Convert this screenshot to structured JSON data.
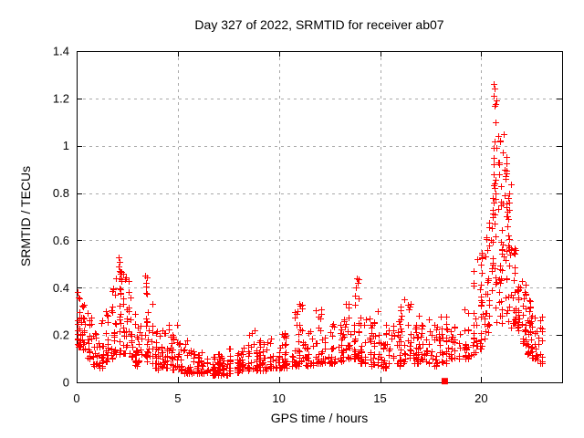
{
  "header": {
    "title": "Day 327 of 2022, SRMTID for receiver ab07"
  },
  "chart_data": {
    "type": "scatter",
    "title": "Day 327 of 2022, SRMTID for receiver ab07",
    "xlabel": "GPS time / hours",
    "ylabel": "SRMTID / TECUs",
    "xlim": [
      0,
      24
    ],
    "ylim": [
      0,
      1.4
    ],
    "xticks": [
      0,
      5,
      10,
      15,
      20
    ],
    "xtick_labels": [
      "0",
      "5",
      "10",
      "15",
      "20"
    ],
    "yticks": [
      0,
      0.2,
      0.4,
      0.6,
      0.8,
      1,
      1.2,
      1.4
    ],
    "ytick_labels": [
      "0",
      "0.2",
      "0.4",
      "0.6",
      "0.8",
      "1",
      "1.2",
      "1.4"
    ],
    "grid": true,
    "legend": "none",
    "marker": "plus-cross",
    "marker_color": "#ff0000",
    "grid_color": "#a9a9a9",
    "border_color": "#000000",
    "background": "#ffffff",
    "data_x_max_hours": 23.1,
    "y_max_observed": 1.26,
    "description": "Dense scatter of 1-per-sample SRMTID values: band ~0.05-0.2 all day, spikes near 2h (0.53), 3.4h (0.45), 13.9h (0.44), large peak 20.5-21.4h up to 1.26, decaying to ~0.1-0.3 by 23h",
    "envelope_bins": [
      [
        0.0,
        0.25,
        0.15,
        0.38,
        22
      ],
      [
        0.25,
        0.5,
        0.14,
        0.33,
        18
      ],
      [
        0.5,
        0.75,
        0.1,
        0.3,
        16
      ],
      [
        0.75,
        1.0,
        0.07,
        0.22,
        14
      ],
      [
        1.0,
        1.25,
        0.06,
        0.2,
        14
      ],
      [
        1.25,
        1.5,
        0.09,
        0.3,
        16
      ],
      [
        1.5,
        1.75,
        0.1,
        0.33,
        16
      ],
      [
        1.75,
        2.0,
        0.12,
        0.44,
        18
      ],
      [
        2.0,
        2.25,
        0.12,
        0.53,
        22
      ],
      [
        2.25,
        2.5,
        0.12,
        0.47,
        18
      ],
      [
        2.5,
        2.75,
        0.1,
        0.42,
        16
      ],
      [
        2.75,
        3.0,
        0.07,
        0.3,
        16
      ],
      [
        3.0,
        3.25,
        0.08,
        0.32,
        14
      ],
      [
        3.25,
        3.5,
        0.09,
        0.45,
        16
      ],
      [
        3.5,
        3.75,
        0.08,
        0.35,
        14
      ],
      [
        3.75,
        4.0,
        0.06,
        0.22,
        14
      ],
      [
        4.0,
        4.25,
        0.05,
        0.2,
        14
      ],
      [
        4.25,
        4.5,
        0.06,
        0.3,
        14
      ],
      [
        4.5,
        4.75,
        0.06,
        0.28,
        14
      ],
      [
        4.75,
        5.0,
        0.05,
        0.25,
        14
      ],
      [
        5.0,
        5.25,
        0.05,
        0.22,
        14
      ],
      [
        5.25,
        5.5,
        0.04,
        0.18,
        14
      ],
      [
        5.5,
        6.0,
        0.04,
        0.15,
        26
      ],
      [
        6.0,
        6.5,
        0.04,
        0.13,
        28
      ],
      [
        6.5,
        7.0,
        0.03,
        0.12,
        28
      ],
      [
        7.0,
        7.5,
        0.03,
        0.12,
        28
      ],
      [
        7.5,
        8.0,
        0.04,
        0.15,
        28
      ],
      [
        8.0,
        8.5,
        0.05,
        0.16,
        28
      ],
      [
        8.5,
        9.0,
        0.05,
        0.21,
        28
      ],
      [
        9.0,
        9.5,
        0.05,
        0.18,
        28
      ],
      [
        9.5,
        10.0,
        0.06,
        0.2,
        28
      ],
      [
        10.0,
        10.5,
        0.06,
        0.22,
        28
      ],
      [
        10.5,
        11.0,
        0.07,
        0.3,
        28
      ],
      [
        11.0,
        11.25,
        0.08,
        0.33,
        14
      ],
      [
        11.25,
        11.75,
        0.07,
        0.22,
        24
      ],
      [
        11.75,
        12.25,
        0.08,
        0.31,
        24
      ],
      [
        12.25,
        12.75,
        0.08,
        0.25,
        24
      ],
      [
        12.75,
        13.25,
        0.09,
        0.28,
        24
      ],
      [
        13.25,
        13.75,
        0.1,
        0.38,
        26
      ],
      [
        13.75,
        14.0,
        0.1,
        0.44,
        16
      ],
      [
        14.0,
        14.5,
        0.08,
        0.28,
        26
      ],
      [
        14.5,
        15.0,
        0.07,
        0.3,
        26
      ],
      [
        15.0,
        15.5,
        0.06,
        0.25,
        26
      ],
      [
        15.5,
        16.0,
        0.07,
        0.28,
        26
      ],
      [
        16.0,
        16.5,
        0.08,
        0.35,
        26
      ],
      [
        16.5,
        17.0,
        0.08,
        0.28,
        26
      ],
      [
        17.0,
        17.5,
        0.08,
        0.27,
        24
      ],
      [
        17.5,
        18.0,
        0.07,
        0.25,
        24
      ],
      [
        18.0,
        18.5,
        0.08,
        0.28,
        22
      ],
      [
        18.5,
        19.0,
        0.1,
        0.28,
        22
      ],
      [
        19.0,
        19.5,
        0.1,
        0.32,
        22
      ],
      [
        19.5,
        19.75,
        0.12,
        0.45,
        14
      ],
      [
        19.75,
        20.0,
        0.14,
        0.5,
        16
      ],
      [
        20.0,
        20.25,
        0.15,
        0.55,
        16
      ],
      [
        20.25,
        20.5,
        0.18,
        0.75,
        18
      ],
      [
        20.5,
        20.75,
        0.25,
        1.2,
        28
      ],
      [
        20.75,
        21.0,
        0.25,
        1.05,
        24
      ],
      [
        21.0,
        21.25,
        0.22,
        1.0,
        22
      ],
      [
        21.25,
        21.5,
        0.22,
        0.85,
        20
      ],
      [
        21.5,
        21.75,
        0.25,
        0.6,
        20
      ],
      [
        21.75,
        22.0,
        0.22,
        0.5,
        20
      ],
      [
        22.0,
        22.25,
        0.15,
        0.45,
        20
      ],
      [
        22.25,
        22.5,
        0.12,
        0.35,
        20
      ],
      [
        22.5,
        22.75,
        0.1,
        0.3,
        20
      ],
      [
        22.75,
        23.1,
        0.08,
        0.28,
        18
      ]
    ],
    "peak_points": [
      [
        20.62,
        1.26
      ],
      [
        20.66,
        1.24
      ],
      [
        20.6,
        1.21
      ],
      [
        20.64,
        1.17
      ],
      [
        20.7,
        1.1
      ],
      [
        20.85,
        1.04
      ],
      [
        21.1,
        1.05
      ],
      [
        20.64,
        1.02
      ],
      [
        20.6,
        0.99
      ],
      [
        21.08,
        0.97
      ],
      [
        20.62,
        0.95
      ],
      [
        20.9,
        0.93
      ],
      [
        21.15,
        0.9
      ],
      [
        20.6,
        0.88
      ],
      [
        21.22,
        0.86
      ],
      [
        20.66,
        0.84
      ],
      [
        20.72,
        0.8
      ],
      [
        21.18,
        0.79
      ],
      [
        20.6,
        0.76
      ],
      [
        21.25,
        0.74
      ],
      [
        20.55,
        0.7
      ],
      [
        20.68,
        0.67
      ],
      [
        21.3,
        0.66
      ],
      [
        21.35,
        0.62
      ],
      [
        20.5,
        0.6
      ],
      [
        21.4,
        0.57
      ],
      [
        21.45,
        0.54
      ],
      [
        19.8,
        0.52
      ],
      [
        20.05,
        0.53
      ],
      [
        20.3,
        0.56
      ],
      [
        19.62,
        0.47
      ],
      [
        2.06,
        0.53
      ],
      [
        2.1,
        0.51
      ],
      [
        2.08,
        0.49
      ],
      [
        2.14,
        0.47
      ],
      [
        2.32,
        0.46
      ],
      [
        2.55,
        0.43
      ],
      [
        3.4,
        0.45
      ],
      [
        3.44,
        0.42
      ],
      [
        1.95,
        0.44
      ],
      [
        13.85,
        0.44
      ],
      [
        13.9,
        0.42
      ],
      [
        13.82,
        0.4
      ],
      [
        11.02,
        0.33
      ],
      [
        12.1,
        0.31
      ],
      [
        16.2,
        0.35
      ],
      [
        0.06,
        0.38
      ],
      [
        0.1,
        0.36
      ],
      [
        22.0,
        0.43
      ],
      [
        21.92,
        0.4
      ],
      [
        8.8,
        0.22
      ],
      [
        10.9,
        0.3
      ],
      [
        14.9,
        0.3
      ],
      [
        16.9,
        0.28
      ],
      [
        22.15,
        0.38
      ]
    ],
    "square_marker": {
      "x": 18.2,
      "y": 0.005
    }
  }
}
